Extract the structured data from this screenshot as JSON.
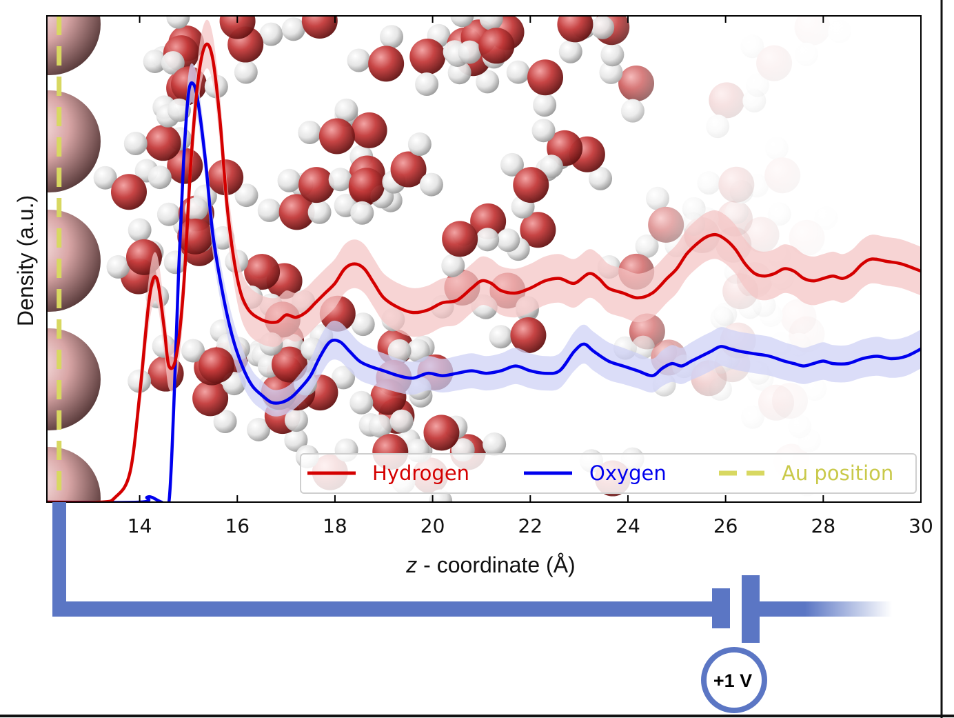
{
  "chart_data": {
    "type": "line",
    "title": "",
    "xlabel": "z - coordinate (Å)",
    "xlabel_parts": {
      "var": "z",
      "rest": " - coordinate (Å)"
    },
    "ylabel": "Density (a.u.)",
    "xlim": [
      12.1,
      30
    ],
    "ylim": [
      0,
      1
    ],
    "xticks": [
      14,
      16,
      18,
      20,
      22,
      24,
      26,
      28,
      30
    ],
    "xtick_labels": [
      "14",
      "16",
      "18",
      "20",
      "22",
      "24",
      "26",
      "28",
      "30"
    ],
    "yticks": [],
    "legend_position": "lower-right",
    "series": [
      {
        "name": "Hydrogen",
        "color": "#d40000",
        "band_color": "#f4c6c6",
        "x": [
          12.1,
          13.2,
          13.5,
          13.8,
          14.0,
          14.2,
          14.35,
          14.5,
          14.6,
          14.75,
          14.9,
          15.05,
          15.2,
          15.35,
          15.5,
          15.65,
          15.8,
          16.0,
          16.2,
          16.5,
          16.8,
          17.0,
          17.2,
          17.4,
          17.6,
          17.8,
          18.0,
          18.2,
          18.4,
          18.6,
          18.8,
          19.0,
          19.3,
          19.6,
          19.9,
          20.2,
          20.5,
          20.8,
          21.0,
          21.2,
          21.4,
          21.7,
          22.0,
          22.3,
          22.6,
          22.9,
          23.2,
          23.4,
          23.6,
          23.9,
          24.2,
          24.5,
          24.8,
          25.0,
          25.2,
          25.4,
          25.6,
          25.8,
          26.0,
          26.2,
          26.4,
          26.6,
          26.8,
          27.0,
          27.2,
          27.4,
          27.6,
          27.8,
          28.0,
          28.2,
          28.4,
          28.6,
          28.8,
          29.0,
          29.3,
          29.6,
          30.0
        ],
        "values": [
          0.0,
          0.0,
          0.01,
          0.06,
          0.22,
          0.42,
          0.46,
          0.36,
          0.28,
          0.3,
          0.44,
          0.7,
          0.87,
          0.94,
          0.91,
          0.78,
          0.6,
          0.46,
          0.4,
          0.375,
          0.37,
          0.385,
          0.38,
          0.39,
          0.41,
          0.43,
          0.45,
          0.48,
          0.49,
          0.48,
          0.45,
          0.42,
          0.4,
          0.39,
          0.395,
          0.41,
          0.415,
          0.44,
          0.455,
          0.45,
          0.435,
          0.43,
          0.44,
          0.455,
          0.46,
          0.45,
          0.47,
          0.46,
          0.44,
          0.43,
          0.42,
          0.43,
          0.46,
          0.48,
          0.51,
          0.53,
          0.545,
          0.55,
          0.54,
          0.52,
          0.49,
          0.47,
          0.465,
          0.47,
          0.48,
          0.475,
          0.46,
          0.455,
          0.46,
          0.465,
          0.46,
          0.47,
          0.49,
          0.5,
          0.495,
          0.49,
          0.475
        ],
        "band_halfwidth": 0.05
      },
      {
        "name": "Oxygen",
        "color": "#0000ee",
        "band_color": "#cfd2f6",
        "x": [
          12.1,
          14.0,
          14.15,
          14.25,
          14.45,
          14.6,
          14.7,
          14.8,
          14.9,
          15.0,
          15.1,
          15.2,
          15.35,
          15.5,
          15.7,
          15.9,
          16.1,
          16.3,
          16.5,
          16.7,
          16.9,
          17.1,
          17.3,
          17.5,
          17.7,
          17.9,
          18.1,
          18.3,
          18.5,
          18.7,
          19.0,
          19.3,
          19.6,
          19.9,
          20.2,
          20.5,
          20.8,
          21.1,
          21.4,
          21.7,
          22.0,
          22.3,
          22.6,
          22.9,
          23.1,
          23.3,
          23.6,
          23.9,
          24.2,
          24.5,
          24.7,
          24.9,
          25.1,
          25.3,
          25.5,
          25.7,
          25.9,
          26.1,
          26.3,
          26.6,
          26.9,
          27.2,
          27.4,
          27.6,
          27.8,
          28.0,
          28.2,
          28.5,
          28.8,
          29.1,
          29.4,
          29.7,
          30.0
        ],
        "values": [
          0.0,
          0.0,
          0.01,
          0.01,
          0.0,
          0.0,
          0.2,
          0.48,
          0.7,
          0.84,
          0.86,
          0.82,
          0.7,
          0.55,
          0.43,
          0.34,
          0.28,
          0.24,
          0.22,
          0.205,
          0.205,
          0.215,
          0.235,
          0.26,
          0.3,
          0.33,
          0.33,
          0.31,
          0.29,
          0.28,
          0.27,
          0.26,
          0.255,
          0.265,
          0.26,
          0.265,
          0.27,
          0.265,
          0.27,
          0.28,
          0.27,
          0.265,
          0.27,
          0.31,
          0.325,
          0.31,
          0.29,
          0.28,
          0.27,
          0.26,
          0.275,
          0.285,
          0.28,
          0.29,
          0.3,
          0.31,
          0.32,
          0.315,
          0.31,
          0.305,
          0.3,
          0.29,
          0.285,
          0.28,
          0.285,
          0.29,
          0.285,
          0.285,
          0.295,
          0.3,
          0.295,
          0.3,
          0.315
        ],
        "band_halfwidth": 0.04
      },
      {
        "name": "Au position",
        "color": "#d8d861",
        "style": "dashed",
        "x_value": 12.35
      }
    ]
  },
  "circuit": {
    "wire_color": "#5b76c4",
    "voltage_label": "+1 V"
  }
}
